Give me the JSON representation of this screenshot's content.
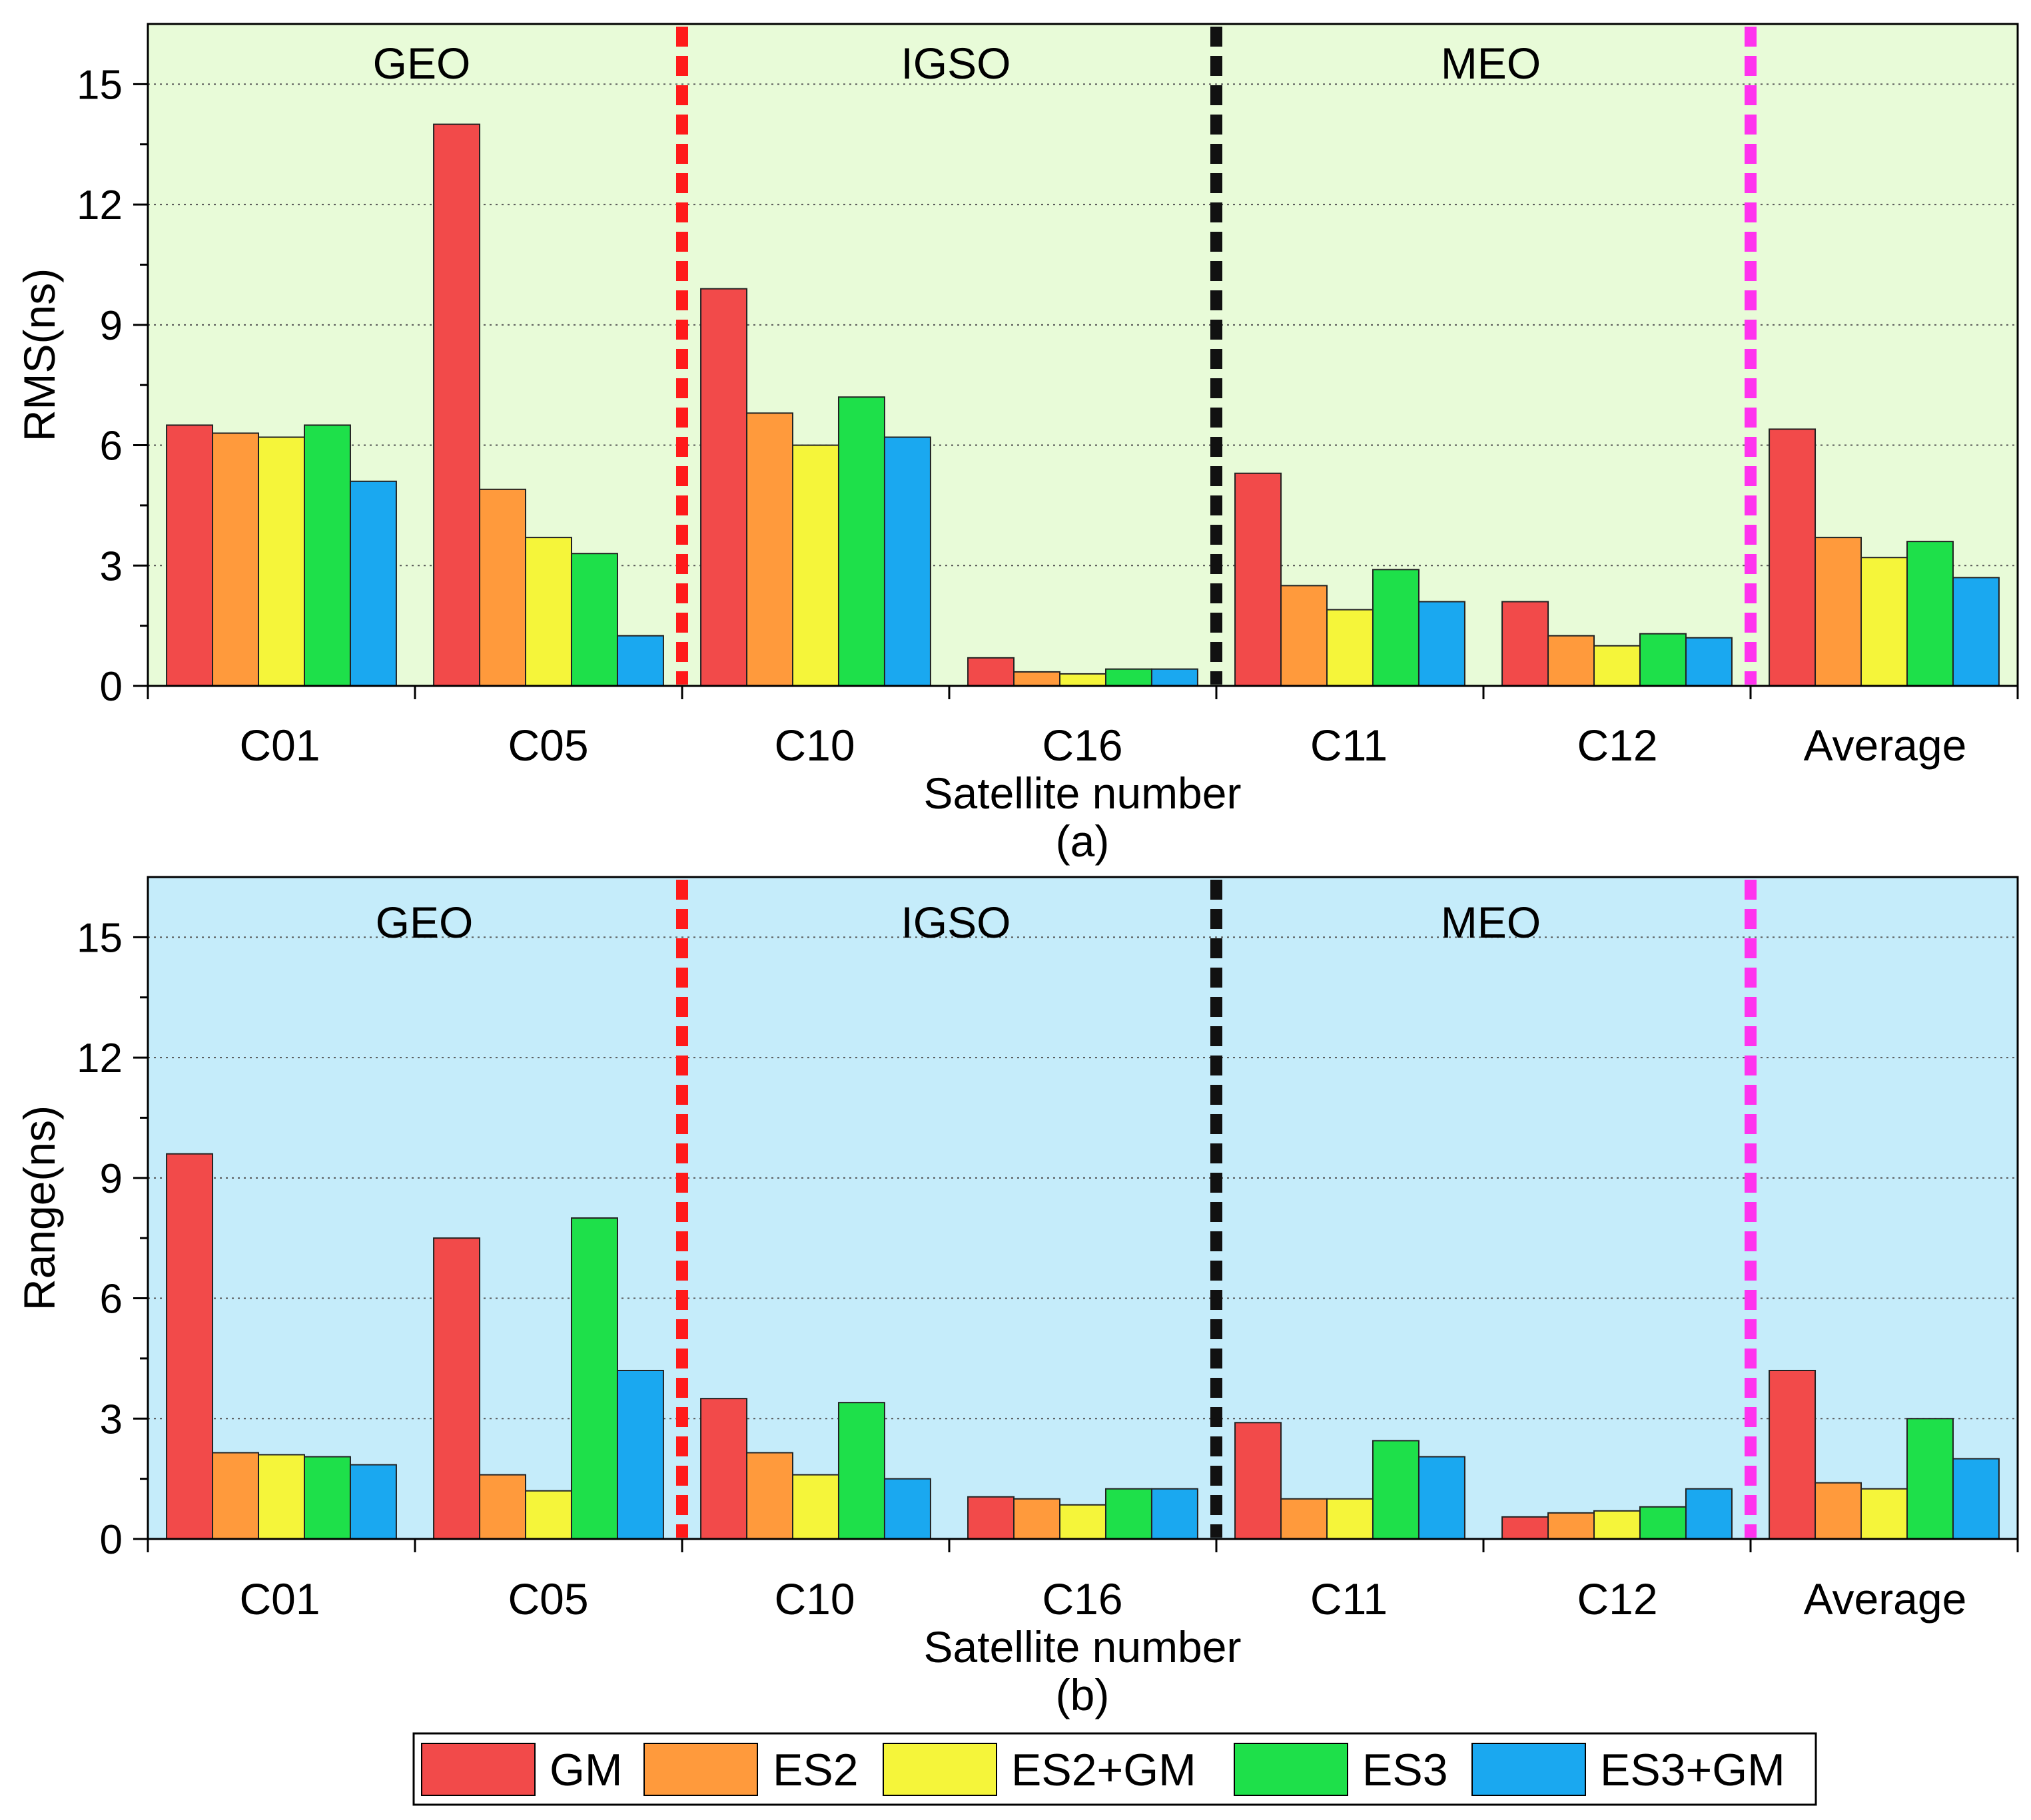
{
  "chart_data": [
    {
      "panel": "(a)",
      "type": "bar",
      "categories": [
        "C01",
        "C05",
        "C10",
        "C16",
        "C11",
        "C12",
        "Average"
      ],
      "series": [
        {
          "name": "GM",
          "values": [
            6.5,
            14.0,
            9.9,
            0.7,
            5.3,
            2.1,
            6.4
          ]
        },
        {
          "name": "ES2",
          "values": [
            6.3,
            4.9,
            6.8,
            0.35,
            2.5,
            1.25,
            3.7
          ]
        },
        {
          "name": "ES2+GM",
          "values": [
            6.2,
            3.7,
            6.0,
            0.3,
            1.9,
            1.0,
            3.2
          ]
        },
        {
          "name": "ES3",
          "values": [
            6.5,
            3.3,
            7.2,
            0.42,
            2.9,
            1.3,
            3.6
          ]
        },
        {
          "name": "ES3+GM",
          "values": [
            5.1,
            1.25,
            6.2,
            0.42,
            2.1,
            1.2,
            2.7
          ]
        }
      ],
      "xlabel": "Satellite number",
      "ylabel": "RMS(ns)",
      "ylim": [
        0,
        16.5
      ],
      "yticks": [
        "0",
        "3",
        "6",
        "9",
        "12",
        "15"
      ],
      "groups": [
        "GEO",
        "IGSO",
        "MEO"
      ],
      "background": "#e8fbd8"
    },
    {
      "panel": "(b)",
      "type": "bar",
      "categories": [
        "C01",
        "C05",
        "C10",
        "C16",
        "C11",
        "C12",
        "Average"
      ],
      "series": [
        {
          "name": "GM",
          "values": [
            9.6,
            7.5,
            3.5,
            1.05,
            2.9,
            0.55,
            4.2
          ]
        },
        {
          "name": "ES2",
          "values": [
            2.15,
            1.6,
            2.15,
            1.0,
            1.0,
            0.65,
            1.4
          ]
        },
        {
          "name": "ES2+GM",
          "values": [
            2.1,
            1.2,
            1.6,
            0.85,
            1.0,
            0.7,
            1.25
          ]
        },
        {
          "name": "ES3",
          "values": [
            2.05,
            8.0,
            3.4,
            1.25,
            2.45,
            0.8,
            3.0
          ]
        },
        {
          "name": "ES3+GM",
          "values": [
            1.85,
            4.2,
            1.5,
            1.25,
            2.05,
            1.25,
            2.0
          ]
        }
      ],
      "xlabel": "Satellite number",
      "ylabel": "Range(ns)",
      "ylim": [
        0,
        16.5
      ],
      "yticks": [
        "0",
        "3",
        "6",
        "9",
        "12",
        "15"
      ],
      "groups": [
        "GEO",
        "IGSO",
        "MEO"
      ],
      "background": "#c5ecfa"
    }
  ],
  "legend": {
    "position": "bottom",
    "entries": [
      {
        "name": "GM",
        "color": "#f24a4a"
      },
      {
        "name": "ES2",
        "color": "#ff9a3c"
      },
      {
        "name": "ES2+GM",
        "color": "#f5f53a"
      },
      {
        "name": "ES3",
        "color": "#1ee04a"
      },
      {
        "name": "ES3+GM",
        "color": "#1aa8f0"
      }
    ]
  },
  "separator_colors": [
    "#ff1a1a",
    "#111111",
    "#ff33ee"
  ],
  "grid": true
}
